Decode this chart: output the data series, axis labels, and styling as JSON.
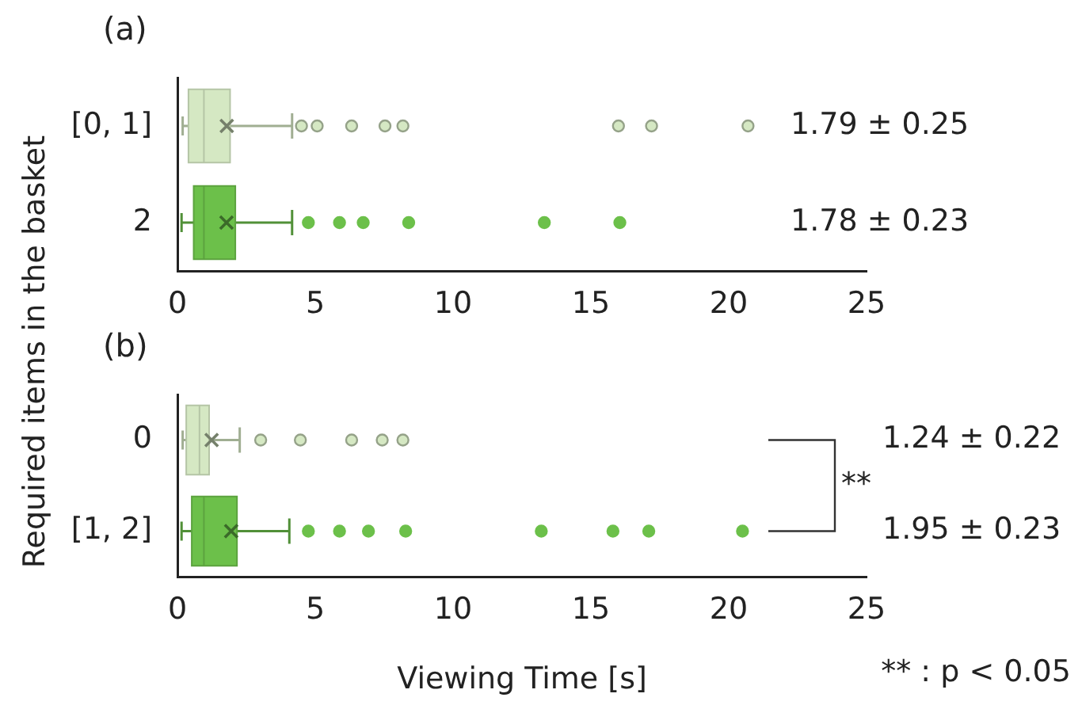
{
  "chart_data": [
    {
      "type": "box",
      "title": "(a)",
      "ylabel": "Required items in the basket",
      "orientation": "horizontal",
      "categories": [
        "[0, 1]",
        "2"
      ],
      "colors": [
        "#d5e8c3",
        "#6cc04a"
      ],
      "boxes": [
        {
          "low": 0.19,
          "q1": 0.4,
          "median": 0.96,
          "q3": 1.91,
          "high": 4.16,
          "mean": 1.79,
          "outliers": [
            4.5,
            5.07,
            6.32,
            7.53,
            8.18,
            16.0,
            17.2,
            20.7
          ]
        },
        {
          "low": 0.15,
          "q1": 0.59,
          "median": 0.96,
          "q3": 2.1,
          "high": 4.16,
          "mean": 1.78,
          "outliers": [
            4.75,
            5.88,
            6.74,
            8.39,
            13.31,
            16.05
          ]
        }
      ],
      "xlim": [
        0,
        25
      ],
      "xticks": [
        0,
        5,
        10,
        15,
        20,
        25
      ],
      "annotations": [
        "1.79 ± 0.25",
        "1.78 ± 0.23"
      ]
    },
    {
      "type": "box",
      "title": "(b)",
      "xlabel": "Viewing Time [s]",
      "orientation": "horizontal",
      "categories": [
        "0",
        "[1, 2]"
      ],
      "colors": [
        "#d5e8c3",
        "#6cc04a"
      ],
      "boxes": [
        {
          "low": 0.19,
          "q1": 0.32,
          "median": 0.8,
          "q3": 1.15,
          "high": 2.26,
          "mean": 1.24,
          "outliers": [
            3.02,
            4.46,
            6.32,
            7.43,
            8.18
          ]
        },
        {
          "low": 0.15,
          "q1": 0.52,
          "median": 0.96,
          "q3": 2.16,
          "high": 4.06,
          "mean": 1.95,
          "outliers": [
            4.75,
            5.88,
            6.93,
            8.28,
            13.2,
            15.8,
            17.1,
            20.5
          ]
        }
      ],
      "xlim": [
        0,
        25
      ],
      "xticks": [
        0,
        5,
        10,
        15,
        20,
        25
      ],
      "annotations": [
        "1.24 ± 0.22",
        "1.95 ± 0.23",
        "**",
        "** : p < 0.05"
      ]
    }
  ]
}
